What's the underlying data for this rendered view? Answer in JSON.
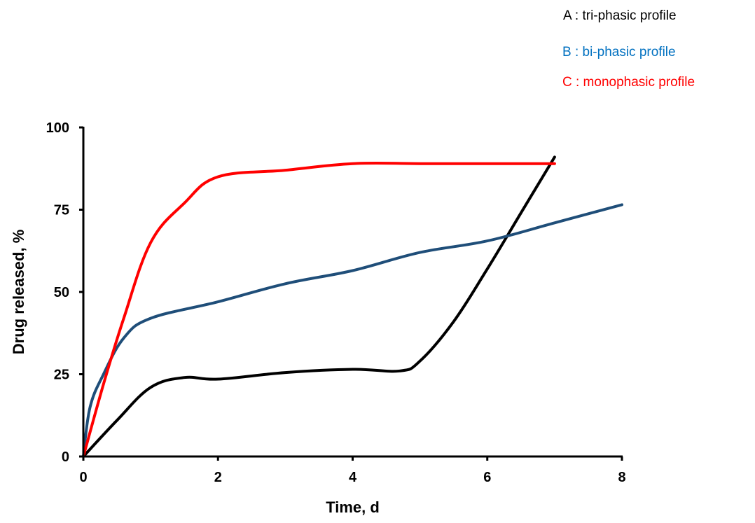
{
  "chart_data": {
    "type": "line",
    "title": "",
    "xlabel": "Time, d",
    "ylabel": "Drug released, %",
    "xlim": [
      0,
      8
    ],
    "ylim": [
      0,
      100
    ],
    "x_ticks": [
      0,
      2,
      4,
      6,
      8
    ],
    "y_ticks": [
      0,
      25,
      50,
      75,
      100
    ],
    "grid": false,
    "legend_position": "top-right",
    "series": [
      {
        "name": "A : tri-phasic profile",
        "color": "#000000",
        "points": [
          [
            0,
            0
          ],
          [
            0.5,
            11
          ],
          [
            1.0,
            21
          ],
          [
            1.5,
            24
          ],
          [
            2.0,
            23.5
          ],
          [
            3.0,
            25.5
          ],
          [
            4.0,
            26.5
          ],
          [
            4.7,
            26
          ],
          [
            5.0,
            29
          ],
          [
            5.5,
            41
          ],
          [
            6.0,
            57
          ],
          [
            6.5,
            74
          ],
          [
            7.0,
            91
          ]
        ]
      },
      {
        "name": "B : bi-phasic profile",
        "color": "#1f4e79",
        "points": [
          [
            0,
            0
          ],
          [
            0.1,
            15
          ],
          [
            0.3,
            25
          ],
          [
            0.6,
            36
          ],
          [
            1.0,
            42
          ],
          [
            2.0,
            47
          ],
          [
            3.0,
            52.5
          ],
          [
            4.0,
            56.5
          ],
          [
            5.0,
            62
          ],
          [
            6.0,
            65.5
          ],
          [
            7.0,
            71
          ],
          [
            8.0,
            76.5
          ]
        ]
      },
      {
        "name": "C : monophasic profile",
        "color": "#ff0000",
        "points": [
          [
            0,
            0
          ],
          [
            0.3,
            22
          ],
          [
            0.6,
            42
          ],
          [
            1.0,
            65
          ],
          [
            1.5,
            77
          ],
          [
            2.0,
            85
          ],
          [
            3.0,
            87
          ],
          [
            4.0,
            89
          ],
          [
            5.0,
            89
          ],
          [
            6.0,
            89
          ],
          [
            7.0,
            89
          ]
        ]
      }
    ]
  }
}
